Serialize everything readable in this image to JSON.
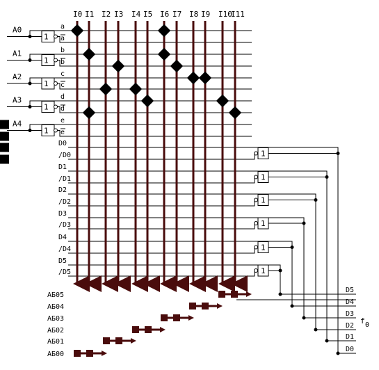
{
  "column_labels": [
    "I0",
    "I1",
    "I2",
    "I3",
    "I4",
    "I5",
    "I6",
    "I7",
    "I8",
    "I9",
    "I10",
    "I11"
  ],
  "inputs": [
    "A0",
    "A1",
    "A2",
    "A3",
    "A4"
  ],
  "inverter_label": "1",
  "row_labels": [
    "a",
    "a",
    "b",
    "b",
    "c",
    "c",
    "d",
    "d",
    "e",
    "e",
    "D0",
    "/D0",
    "D1",
    "/D1",
    "D2",
    "/D2",
    "D3",
    "/D3",
    "D4",
    "/D4",
    "D5",
    "/D5"
  ],
  "inverted_rows": [
    1,
    3,
    5,
    7,
    9
  ],
  "or_gate_label": "1",
  "output_groups": [
    "АБ05",
    "АБ04",
    "АБ03",
    "АБ02",
    "АБ01",
    "АБ00"
  ],
  "output_lines": [
    "D5",
    "D4",
    "D3",
    "D2",
    "D1",
    "D0"
  ],
  "output_function": "f",
  "output_function_sub": "0",
  "colors": {
    "wire": "#000000",
    "bus": "#4a0c0c",
    "node": "#000000"
  }
}
